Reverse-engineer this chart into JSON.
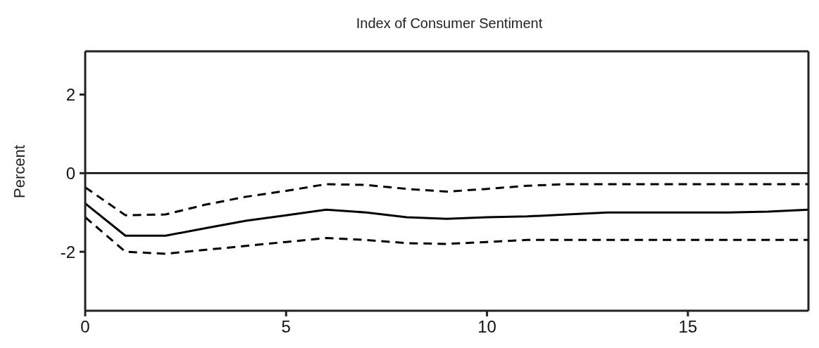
{
  "chart_data": {
    "type": "line",
    "title": "Index of Consumer Sentiment",
    "ylabel": "Percent",
    "x": [
      0,
      1,
      2,
      3,
      4,
      5,
      6,
      7,
      8,
      9,
      10,
      11,
      12,
      13,
      14,
      15,
      16,
      17,
      18
    ],
    "series": [
      {
        "color": "#000000",
        "line_style": "solid",
        "values": [
          -0.77,
          -1.59,
          -1.59,
          -1.4,
          -1.21,
          -1.07,
          -0.93,
          -1.0,
          -1.12,
          -1.16,
          -1.12,
          -1.1,
          -1.05,
          -1.0,
          -1.0,
          -1.0,
          -1.0,
          -0.98,
          -0.93
        ]
      },
      {
        "color": "#000000",
        "line_style": "dashed",
        "values": [
          -0.36,
          -1.07,
          -1.05,
          -0.8,
          -0.6,
          -0.45,
          -0.28,
          -0.3,
          -0.4,
          -0.47,
          -0.4,
          -0.32,
          -0.28,
          -0.28,
          -0.28,
          -0.28,
          -0.28,
          -0.28,
          -0.28
        ]
      },
      {
        "color": "#000000",
        "line_style": "dashed",
        "values": [
          -1.12,
          -2.0,
          -2.05,
          -1.95,
          -1.85,
          -1.75,
          -1.65,
          -1.7,
          -1.78,
          -1.8,
          -1.75,
          -1.7,
          -1.7,
          -1.7,
          -1.7,
          -1.7,
          -1.7,
          -1.7,
          -1.7
        ]
      }
    ],
    "xlim": [
      0,
      18
    ],
    "xticks": [
      0,
      5,
      10,
      15
    ],
    "ylim": [
      -3.5,
      3.1
    ],
    "yticks": [
      -2,
      0,
      2
    ],
    "ref_lines": [
      {
        "axis": "y",
        "value": 0,
        "color": "#000000",
        "line_style": "solid"
      }
    ],
    "grid": false,
    "legend": false,
    "marker": "none"
  }
}
